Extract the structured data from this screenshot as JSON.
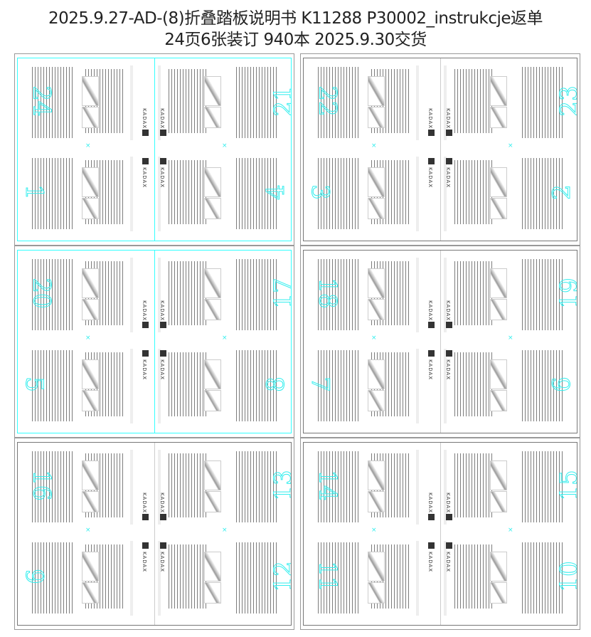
{
  "title_line1": "2025.9.27-AD-(8)折叠踏板说明书 K11288 P30002_instrukcje返单",
  "title_line2": "24页6张装订   940本   2025.9.30交货",
  "brand": "KADAX",
  "accent_color": "#33eeee",
  "sheets": [
    {
      "pages": [
        "24",
        "1",
        "21",
        "4"
      ],
      "cyan": true
    },
    {
      "pages": [
        "22",
        "3",
        "23",
        "2"
      ],
      "cyan": false
    },
    {
      "pages": [
        "20",
        "5",
        "17",
        "8"
      ],
      "cyan": true
    },
    {
      "pages": [
        "18",
        "7",
        "19",
        "6"
      ],
      "cyan": false
    },
    {
      "pages": [
        "16",
        "9",
        "13",
        "12"
      ],
      "cyan": false
    },
    {
      "pages": [
        "14",
        "11",
        "15",
        "10"
      ],
      "cyan": false
    }
  ]
}
